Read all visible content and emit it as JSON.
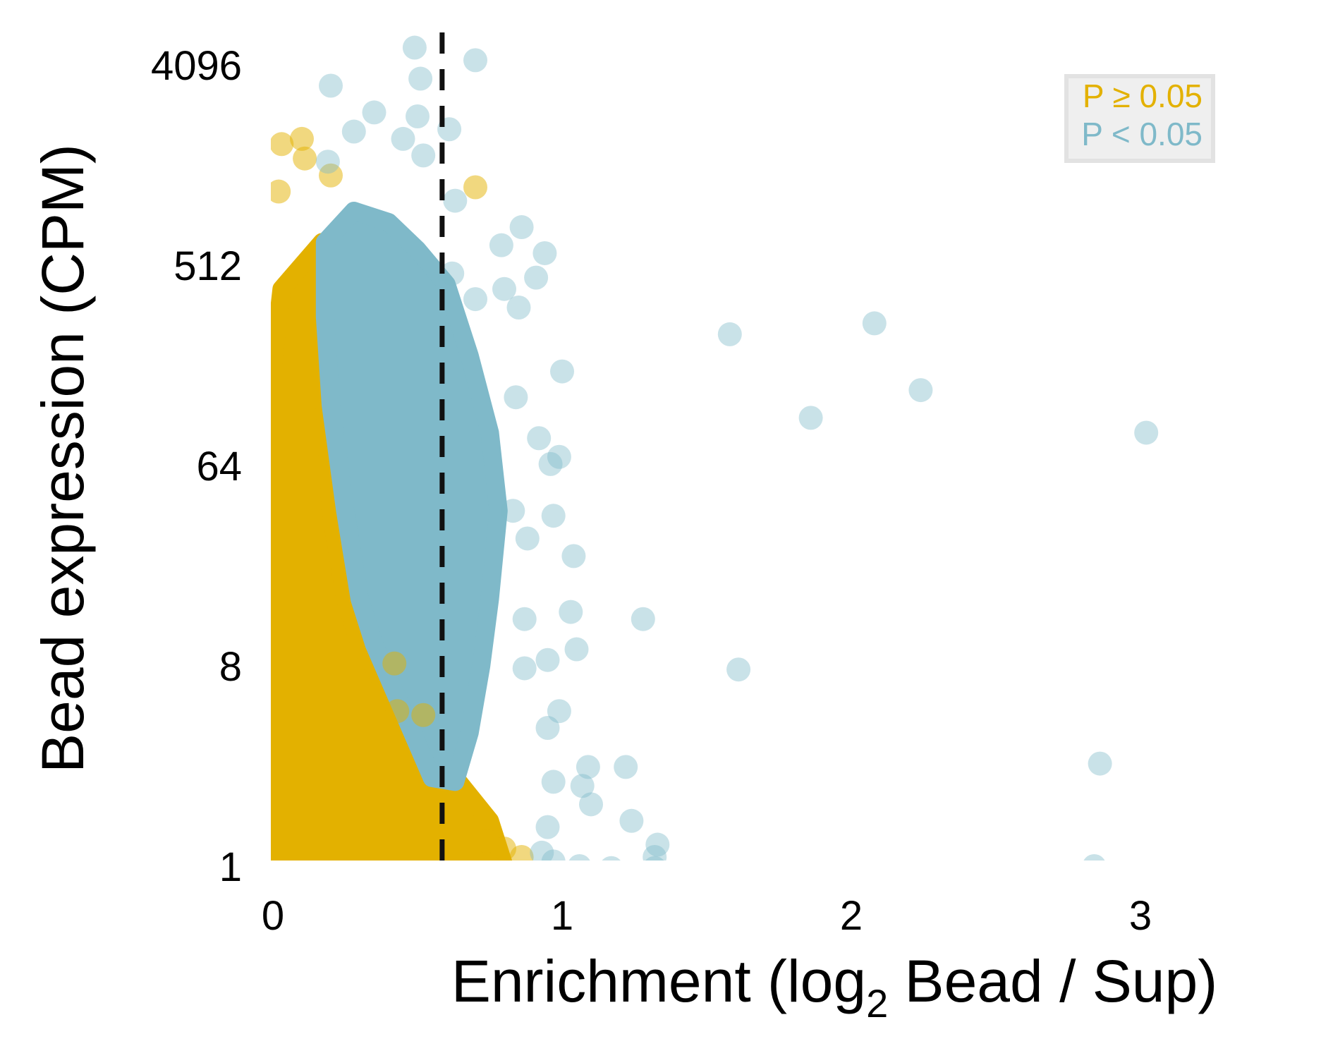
{
  "chart_data": {
    "type": "scatter",
    "xlabel_main": "Enrichment (log",
    "xlabel_sub": "2",
    "xlabel_tail": " Bead / Sup)",
    "ylabel": "Bead expression (CPM)",
    "x_ticks": [
      "0",
      "1",
      "2",
      "3"
    ],
    "y_ticks": [
      "1",
      "8",
      "64",
      "512",
      "4096"
    ],
    "xlim": [
      0,
      3.3
    ],
    "ylim_log2": [
      0,
      12.5
    ],
    "y_scale": "log2",
    "threshold_x": 0.585,
    "grid": false,
    "legend_position": "top-right",
    "colors": {
      "not_significant": "#E3B100",
      "significant": "#7FB9C9",
      "threshold": "#111111",
      "legend_bg": "#EFEFEF"
    },
    "legend": [
      {
        "key": "not_significant",
        "label": "P ≥ 0.05"
      },
      {
        "key": "significant",
        "label": "P < 0.05"
      }
    ],
    "bulk_regions": {
      "not_significant": [
        [
          0,
          1
        ],
        [
          0,
          180
        ],
        [
          0.03,
          400
        ],
        [
          0.17,
          650
        ],
        [
          0.17,
          180
        ],
        [
          0.2,
          40
        ],
        [
          0.25,
          16
        ],
        [
          0.3,
          10
        ],
        [
          0.4,
          6
        ],
        [
          0.5,
          4
        ],
        [
          0.6,
          2.8
        ],
        [
          0.75,
          1.6
        ],
        [
          0.8,
          1
        ]
      ],
      "significant": [
        [
          0.18,
          650
        ],
        [
          0.28,
          900
        ],
        [
          0.4,
          800
        ],
        [
          0.5,
          600
        ],
        [
          0.6,
          420
        ],
        [
          0.68,
          200
        ],
        [
          0.75,
          90
        ],
        [
          0.78,
          40
        ],
        [
          0.75,
          16
        ],
        [
          0.72,
          8
        ],
        [
          0.68,
          4
        ],
        [
          0.63,
          2.4
        ],
        [
          0.55,
          2.5
        ],
        [
          0.45,
          5
        ],
        [
          0.35,
          10
        ],
        [
          0.3,
          16
        ],
        [
          0.25,
          40
        ],
        [
          0.2,
          120
        ],
        [
          0.18,
          300
        ]
      ]
    },
    "significant_points": [
      [
        0.49,
        4900
      ],
      [
        0.7,
        4300
      ],
      [
        0.51,
        3550
      ],
      [
        0.2,
        3300
      ],
      [
        0.35,
        2500
      ],
      [
        0.5,
        2400
      ],
      [
        0.61,
        2100
      ],
      [
        0.28,
        2050
      ],
      [
        0.45,
        1900
      ],
      [
        0.52,
        1600
      ],
      [
        0.19,
        1500
      ],
      [
        0.63,
        1000
      ],
      [
        0.86,
        760
      ],
      [
        0.79,
        630
      ],
      [
        0.94,
        580
      ],
      [
        0.62,
        470
      ],
      [
        0.91,
        450
      ],
      [
        0.8,
        400
      ],
      [
        0.7,
        360
      ],
      [
        0.85,
        330
      ],
      [
        1.58,
        250
      ],
      [
        2.08,
        280
      ],
      [
        1.0,
        170
      ],
      [
        0.84,
        130
      ],
      [
        2.24,
        140
      ],
      [
        1.86,
        105
      ],
      [
        0.92,
        85
      ],
      [
        3.02,
        90
      ],
      [
        0.99,
        70
      ],
      [
        0.96,
        65
      ],
      [
        0.83,
        40
      ],
      [
        0.97,
        38
      ],
      [
        0.88,
        30
      ],
      [
        1.04,
        25
      ],
      [
        1.03,
        14
      ],
      [
        0.87,
        13
      ],
      [
        1.28,
        13
      ],
      [
        1.05,
        9.5
      ],
      [
        0.95,
        8.5
      ],
      [
        1.61,
        7.7
      ],
      [
        0.87,
        7.8
      ],
      [
        0.99,
        5
      ],
      [
        0.95,
        4.2
      ],
      [
        2.86,
        2.9
      ],
      [
        1.22,
        2.8
      ],
      [
        1.09,
        2.8
      ],
      [
        1.07,
        2.3
      ],
      [
        0.97,
        2.4
      ],
      [
        1.24,
        1.6
      ],
      [
        1.1,
        1.9
      ],
      [
        0.95,
        1.5
      ],
      [
        1.33,
        1.25
      ],
      [
        1.32,
        1.1
      ],
      [
        0.97,
        1.05
      ],
      [
        1.06,
        1.0
      ],
      [
        1.32,
        0.98
      ],
      [
        1.17,
        0.98
      ],
      [
        2.84,
        1.0
      ],
      [
        0.93,
        1.15
      ]
    ],
    "not_significant_points": [
      [
        0.1,
        1900
      ],
      [
        0.03,
        1800
      ],
      [
        0.11,
        1550
      ],
      [
        0.7,
        1150
      ],
      [
        0.2,
        1300
      ],
      [
        0.02,
        1100
      ],
      [
        0.42,
        8.2
      ],
      [
        0.43,
        5.0
      ],
      [
        0.52,
        4.8
      ],
      [
        0.8,
        1.2
      ],
      [
        0.86,
        1.1
      ],
      [
        0.74,
        1.3
      ]
    ]
  }
}
